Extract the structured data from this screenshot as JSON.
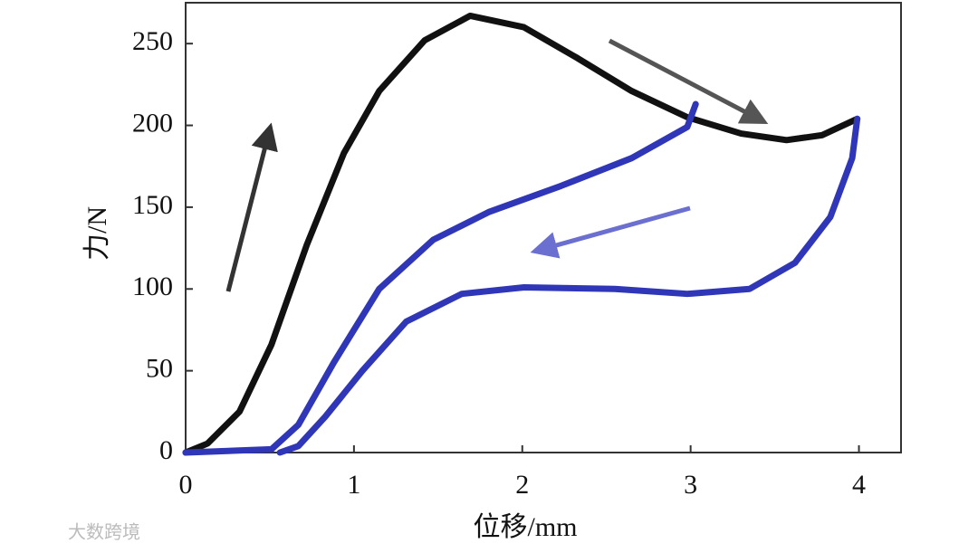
{
  "chart_data": {
    "type": "line",
    "x_label": "位移/mm",
    "y_label": "力/N",
    "xlim": [
      0,
      4.25
    ],
    "ylim": [
      0,
      275
    ],
    "xticks": [
      0,
      1,
      2,
      3,
      4
    ],
    "yticks": [
      0,
      50,
      100,
      150,
      200,
      250
    ],
    "series": [
      {
        "color": "#111111",
        "x": [
          0,
          0.13,
          0.32,
          0.51,
          0.72,
          0.94,
          1.15,
          1.42,
          1.69,
          2.01,
          2.33,
          2.65,
          2.98,
          3.3,
          3.57,
          3.78,
          3.99
        ],
        "values": [
          0,
          5.5,
          25,
          66,
          127,
          183,
          221,
          252,
          267,
          260,
          241,
          221,
          205,
          195,
          191,
          194,
          204
        ]
      },
      {
        "color": "#2f36b8",
        "x": [
          3.99,
          3.96,
          3.83,
          3.62,
          3.35,
          2.98,
          2.55,
          2.01,
          1.64,
          1.31,
          1.05,
          0.83,
          0.67,
          0.56
        ],
        "values": [
          204,
          180,
          144,
          116,
          100,
          97,
          100,
          101,
          97,
          80,
          50,
          22,
          4,
          0
        ]
      },
      {
        "color": "#2f36b8",
        "x": [
          3.03,
          2.98,
          2.65,
          2.23,
          1.8,
          1.47,
          1.15,
          0.88,
          0.67,
          0.51,
          0
        ],
        "values": [
          213,
          199,
          180,
          163,
          147,
          130,
          100,
          55,
          17,
          2,
          0
        ]
      }
    ]
  },
  "watermark": "大数跨境"
}
